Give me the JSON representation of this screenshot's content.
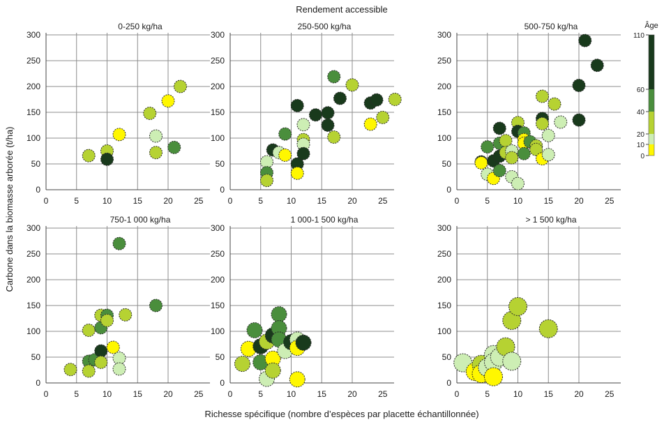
{
  "chart_data": {
    "type": "scatter",
    "title": "Rendement accessible",
    "xlabel": "Richesse spécifique (nombre d’espèces par placette échantillonnée)",
    "ylabel": "Carbone dans la biomasse arborée (t/ha)",
    "xlim": [
      0,
      30
    ],
    "ylim": [
      0,
      300
    ],
    "x_ticks": [
      "0",
      "5",
      "10",
      "15",
      "20",
      "25"
    ],
    "y_ticks": [
      "0",
      "50",
      "100",
      "150",
      "200",
      "250",
      "300"
    ],
    "grid": "vertical and horizontal",
    "legend": {
      "title": "Âge",
      "ticks": [
        "0",
        "10",
        "20",
        "40",
        "60",
        "110"
      ],
      "bands": [
        {
          "from": 0,
          "to": 10,
          "color": "#fff700"
        },
        {
          "from": 10,
          "to": 20,
          "color": "#cdeeb4"
        },
        {
          "from": 20,
          "to": 40,
          "color": "#b6d232"
        },
        {
          "from": 40,
          "to": 60,
          "color": "#4a8e3c"
        },
        {
          "from": 60,
          "to": 110,
          "color": "#193a1c"
        }
      ]
    },
    "panels": [
      {
        "title": "0-250 kg/ha",
        "points": [
          {
            "x": 7,
            "y": 66,
            "age": 25
          },
          {
            "x": 10,
            "y": 75,
            "age": 25
          },
          {
            "x": 10,
            "y": 59,
            "age": 80
          },
          {
            "x": 12,
            "y": 107,
            "age": 5
          },
          {
            "x": 17,
            "y": 148,
            "age": 30
          },
          {
            "x": 18,
            "y": 104,
            "age": 15
          },
          {
            "x": 18,
            "y": 72,
            "age": 30
          },
          {
            "x": 20,
            "y": 172,
            "age": 5
          },
          {
            "x": 21,
            "y": 82,
            "age": 45
          },
          {
            "x": 22,
            "y": 200,
            "age": 30
          }
        ]
      },
      {
        "title": "250-500 kg/ha",
        "points": [
          {
            "x": 6,
            "y": 54,
            "age": 15
          },
          {
            "x": 6,
            "y": 33,
            "age": 45
          },
          {
            "x": 6,
            "y": 18,
            "age": 30
          },
          {
            "x": 7,
            "y": 77,
            "age": 70
          },
          {
            "x": 8,
            "y": 72,
            "age": 15
          },
          {
            "x": 9,
            "y": 67,
            "age": 5
          },
          {
            "x": 9,
            "y": 108,
            "age": 45
          },
          {
            "x": 11,
            "y": 163,
            "age": 70
          },
          {
            "x": 11,
            "y": 50,
            "age": 80
          },
          {
            "x": 11,
            "y": 32,
            "age": 5
          },
          {
            "x": 12,
            "y": 126,
            "age": 15
          },
          {
            "x": 12,
            "y": 97,
            "age": 30
          },
          {
            "x": 12,
            "y": 88,
            "age": 15
          },
          {
            "x": 12,
            "y": 70,
            "age": 70
          },
          {
            "x": 14,
            "y": 145,
            "age": 70
          },
          {
            "x": 16,
            "y": 149,
            "age": 70
          },
          {
            "x": 16,
            "y": 125,
            "age": 70
          },
          {
            "x": 17,
            "y": 219,
            "age": 45
          },
          {
            "x": 17,
            "y": 102,
            "age": 30
          },
          {
            "x": 18,
            "y": 177,
            "age": 70
          },
          {
            "x": 20,
            "y": 203,
            "age": 30
          },
          {
            "x": 23,
            "y": 168,
            "age": 70
          },
          {
            "x": 23,
            "y": 127,
            "age": 5
          },
          {
            "x": 24,
            "y": 174,
            "age": 70
          },
          {
            "x": 25,
            "y": 140,
            "age": 30
          },
          {
            "x": 27,
            "y": 175,
            "age": 30
          }
        ]
      },
      {
        "title": "500-750 kg/ha",
        "points": [
          {
            "x": 4,
            "y": 54,
            "age": 70
          },
          {
            "x": 4,
            "y": 52,
            "age": 5
          },
          {
            "x": 5,
            "y": 83,
            "age": 45
          },
          {
            "x": 5,
            "y": 30,
            "age": 15
          },
          {
            "x": 6,
            "y": 56,
            "age": 80
          },
          {
            "x": 6,
            "y": 22,
            "age": 5
          },
          {
            "x": 7,
            "y": 119,
            "age": 70
          },
          {
            "x": 7,
            "y": 90,
            "age": 45
          },
          {
            "x": 7,
            "y": 65,
            "age": 70
          },
          {
            "x": 7,
            "y": 37,
            "age": 45
          },
          {
            "x": 8,
            "y": 95,
            "age": 30
          },
          {
            "x": 8,
            "y": 72,
            "age": 30
          },
          {
            "x": 9,
            "y": 75,
            "age": 15
          },
          {
            "x": 9,
            "y": 62,
            "age": 30
          },
          {
            "x": 9,
            "y": 25,
            "age": 15
          },
          {
            "x": 10,
            "y": 130,
            "age": 30
          },
          {
            "x": 10,
            "y": 113,
            "age": 80
          },
          {
            "x": 10,
            "y": 12,
            "age": 15
          },
          {
            "x": 11,
            "y": 110,
            "age": 45
          },
          {
            "x": 11,
            "y": 97,
            "age": 5
          },
          {
            "x": 11,
            "y": 90,
            "age": 5
          },
          {
            "x": 11,
            "y": 70,
            "age": 45
          },
          {
            "x": 12,
            "y": 93,
            "age": 45
          },
          {
            "x": 13,
            "y": 85,
            "age": 30
          },
          {
            "x": 13,
            "y": 78,
            "age": 30
          },
          {
            "x": 14,
            "y": 181,
            "age": 30
          },
          {
            "x": 14,
            "y": 138,
            "age": 80
          },
          {
            "x": 14,
            "y": 128,
            "age": 30
          },
          {
            "x": 14,
            "y": 60,
            "age": 5
          },
          {
            "x": 15,
            "y": 105,
            "age": 15
          },
          {
            "x": 15,
            "y": 68,
            "age": 15
          },
          {
            "x": 16,
            "y": 166,
            "age": 30
          },
          {
            "x": 17,
            "y": 131,
            "age": 15
          },
          {
            "x": 20,
            "y": 202,
            "age": 80
          },
          {
            "x": 20,
            "y": 135,
            "age": 80
          },
          {
            "x": 21,
            "y": 289,
            "age": 80
          },
          {
            "x": 23,
            "y": 241,
            "age": 80
          }
        ]
      },
      {
        "title": "750-1 000 kg/ha",
        "points": [
          {
            "x": 4,
            "y": 26,
            "age": 30
          },
          {
            "x": 7,
            "y": 102,
            "age": 30
          },
          {
            "x": 7,
            "y": 42,
            "age": 45
          },
          {
            "x": 7,
            "y": 23,
            "age": 30
          },
          {
            "x": 8,
            "y": 45,
            "age": 45
          },
          {
            "x": 9,
            "y": 131,
            "age": 30
          },
          {
            "x": 9,
            "y": 107,
            "age": 45
          },
          {
            "x": 9,
            "y": 62,
            "age": 80
          },
          {
            "x": 9,
            "y": 40,
            "age": 30
          },
          {
            "x": 10,
            "y": 131,
            "age": 45
          },
          {
            "x": 10,
            "y": 121,
            "age": 30
          },
          {
            "x": 11,
            "y": 69,
            "age": 5
          },
          {
            "x": 12,
            "y": 270,
            "age": 45
          },
          {
            "x": 12,
            "y": 48,
            "age": 15
          },
          {
            "x": 12,
            "y": 27,
            "age": 15
          },
          {
            "x": 13,
            "y": 132,
            "age": 30
          },
          {
            "x": 18,
            "y": 150,
            "age": 45
          }
        ]
      },
      {
        "title": "1 000-1 500 kg/ha",
        "points": [
          {
            "x": 2,
            "y": 37,
            "age": 30
          },
          {
            "x": 3,
            "y": 66,
            "age": 5
          },
          {
            "x": 4,
            "y": 102,
            "age": 45
          },
          {
            "x": 5,
            "y": 71,
            "age": 80
          },
          {
            "x": 5,
            "y": 40,
            "age": 45
          },
          {
            "x": 6,
            "y": 80,
            "age": 30
          },
          {
            "x": 6,
            "y": 8,
            "age": 15
          },
          {
            "x": 7,
            "y": 92,
            "age": 80
          },
          {
            "x": 7,
            "y": 47,
            "age": 5
          },
          {
            "x": 7,
            "y": 24,
            "age": 30
          },
          {
            "x": 8,
            "y": 133,
            "age": 45
          },
          {
            "x": 8,
            "y": 106,
            "age": 45
          },
          {
            "x": 8,
            "y": 84,
            "age": 45
          },
          {
            "x": 9,
            "y": 62,
            "age": 15
          },
          {
            "x": 10,
            "y": 79,
            "age": 80
          },
          {
            "x": 11,
            "y": 84,
            "age": 15
          },
          {
            "x": 11,
            "y": 68,
            "age": 5
          },
          {
            "x": 11,
            "y": 7,
            "age": 5
          },
          {
            "x": 12,
            "y": 78,
            "age": 80
          }
        ]
      },
      {
        "title": "> 1 500 kg/ha",
        "points": [
          {
            "x": 1,
            "y": 39,
            "age": 15
          },
          {
            "x": 3,
            "y": 22,
            "age": 5
          },
          {
            "x": 4,
            "y": 36,
            "age": 30
          },
          {
            "x": 4,
            "y": 18,
            "age": 5
          },
          {
            "x": 5,
            "y": 30,
            "age": 15
          },
          {
            "x": 6,
            "y": 55,
            "age": 15
          },
          {
            "x": 6,
            "y": 40,
            "age": 15
          },
          {
            "x": 6,
            "y": 12,
            "age": 5
          },
          {
            "x": 7,
            "y": 50,
            "age": 15
          },
          {
            "x": 8,
            "y": 70,
            "age": 30
          },
          {
            "x": 9,
            "y": 121,
            "age": 30
          },
          {
            "x": 9,
            "y": 42,
            "age": 15
          },
          {
            "x": 10,
            "y": 148,
            "age": 30
          },
          {
            "x": 15,
            "y": 105,
            "age": 30
          }
        ]
      }
    ]
  }
}
